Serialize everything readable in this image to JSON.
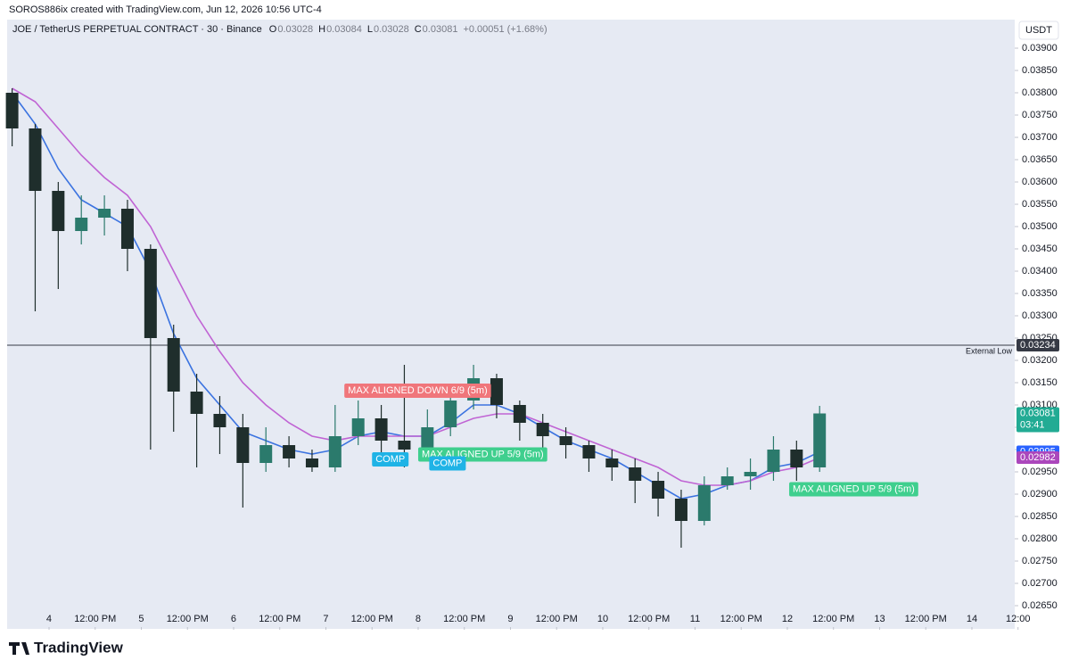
{
  "author": "SOROS886ix created with TradingView.com, Jun 12, 2026 10:56 UTC-4",
  "brand": "TradingView",
  "chart_data": {
    "type": "candlestick",
    "title": "JOE / TetherUS PERPETUAL CONTRACT · 30 · Binance",
    "header_values": [
      {
        "key": "O",
        "text": "0.03028"
      },
      {
        "key": "H",
        "text": "0.03084"
      },
      {
        "key": "L",
        "text": "0.03028"
      },
      {
        "key": "C",
        "text": "0.03081"
      }
    ],
    "change": "+0.00051 (+1.68%)",
    "currency": "USDT",
    "up_color": "#2b7a6c",
    "down_color": "#1f2e2c",
    "x": [
      3.6,
      3.85,
      4.1,
      4.35,
      4.6,
      4.85,
      5.1,
      5.35,
      5.6,
      5.85,
      6.1,
      6.35,
      6.6,
      6.85,
      7.1,
      7.35,
      7.6,
      7.85,
      8.1,
      8.35,
      8.6,
      8.85,
      9.1,
      9.35,
      9.6,
      9.85,
      10.1,
      10.35,
      10.6,
      10.85,
      11.1,
      11.35,
      11.6,
      11.85,
      12.1,
      12.35
    ],
    "open": [
      0.038,
      0.0372,
      0.0358,
      0.0349,
      0.0352,
      0.0354,
      0.0345,
      0.0325,
      0.0313,
      0.0308,
      0.0305,
      0.0297,
      0.0301,
      0.0298,
      0.0296,
      0.0303,
      0.0307,
      0.0302,
      0.03,
      0.0305,
      0.0311,
      0.0316,
      0.031,
      0.0306,
      0.0303,
      0.0301,
      0.0298,
      0.0296,
      0.0293,
      0.0289,
      0.0284,
      0.0292,
      0.0294,
      0.0295,
      0.03,
      0.0296
    ],
    "high": [
      0.0381,
      0.0373,
      0.036,
      0.0357,
      0.0357,
      0.0356,
      0.0346,
      0.0328,
      0.0317,
      0.0312,
      0.0308,
      0.0305,
      0.0303,
      0.03,
      0.031,
      0.0311,
      0.031,
      0.0319,
      0.0309,
      0.0314,
      0.0319,
      0.0317,
      0.0311,
      0.0308,
      0.0305,
      0.0302,
      0.03,
      0.0298,
      0.0295,
      0.0291,
      0.0294,
      0.0296,
      0.0298,
      0.0303,
      0.0302,
      0.03098
    ],
    "low": [
      0.0368,
      0.0331,
      0.0336,
      0.0346,
      0.0348,
      0.034,
      0.03,
      0.0304,
      0.0296,
      0.0299,
      0.0287,
      0.0295,
      0.0296,
      0.0295,
      0.0295,
      0.0301,
      0.0298,
      0.0296,
      0.0298,
      0.0303,
      0.0309,
      0.0307,
      0.0302,
      0.0298,
      0.0298,
      0.0295,
      0.0293,
      0.0288,
      0.0285,
      0.0278,
      0.0283,
      0.0291,
      0.0291,
      0.0293,
      0.0293,
      0.0295
    ],
    "close": [
      0.0372,
      0.0358,
      0.0349,
      0.0352,
      0.0354,
      0.0345,
      0.0325,
      0.0313,
      0.0308,
      0.0305,
      0.0297,
      0.0301,
      0.0298,
      0.0296,
      0.0303,
      0.0307,
      0.0302,
      0.03,
      0.0305,
      0.0311,
      0.0316,
      0.031,
      0.0306,
      0.0303,
      0.0301,
      0.0298,
      0.0296,
      0.0293,
      0.0289,
      0.0284,
      0.0292,
      0.0294,
      0.0295,
      0.03,
      0.0296,
      0.03081
    ],
    "lines": [
      {
        "color": "#3b73e0",
        "values": [
          0.038,
          0.0373,
          0.0363,
          0.0356,
          0.0353,
          0.035,
          0.034,
          0.0326,
          0.0316,
          0.031,
          0.0304,
          0.0302,
          0.03,
          0.0299,
          0.03,
          0.0303,
          0.0304,
          0.0303,
          0.0303,
          0.0306,
          0.031,
          0.031,
          0.0308,
          0.0305,
          0.0302,
          0.03,
          0.0298,
          0.0295,
          0.0292,
          0.0289,
          0.029,
          0.0292,
          0.0293,
          0.0296,
          0.0297,
          0.02995
        ]
      },
      {
        "color": "#c064d4",
        "values": [
          0.0381,
          0.0378,
          0.0372,
          0.0366,
          0.0361,
          0.0357,
          0.035,
          0.034,
          0.033,
          0.0322,
          0.0315,
          0.031,
          0.0306,
          0.0303,
          0.0302,
          0.0303,
          0.0303,
          0.0303,
          0.0303,
          0.0305,
          0.0307,
          0.0308,
          0.0308,
          0.0306,
          0.0304,
          0.0302,
          0.03,
          0.0298,
          0.0296,
          0.0293,
          0.0292,
          0.0292,
          0.0293,
          0.0295,
          0.0296,
          0.02982
        ]
      }
    ],
    "hline": {
      "value": 0.03234,
      "label": "External Low",
      "color": "#363a45"
    },
    "price_labels": [
      {
        "value": 0.03234,
        "label": "0.03234",
        "color": "#363a45"
      },
      {
        "value": 0.03081,
        "label": "0.03081",
        "countdown": "03:41",
        "color": "#22ab94"
      },
      {
        "value": 0.02995,
        "label": "0.02995",
        "color": "#2962ff"
      },
      {
        "value": 0.02982,
        "label": "0.02982",
        "color": "#ab47bc"
      }
    ],
    "annotations": [
      {
        "text": "MAX ALIGNED DOWN 6/9 (5m)",
        "x": 7.2,
        "y": 0.03132,
        "color": "#f0767b"
      },
      {
        "text": "MAX ALIGNED UP 5/9 (5m)",
        "x": 8.0,
        "y": 0.02989,
        "color": "#3fcf8e"
      },
      {
        "text": "COMP",
        "x": 7.5,
        "y": 0.02978,
        "color": "#1fb3e6"
      },
      {
        "text": "COMP",
        "x": 8.12,
        "y": 0.02969,
        "color": "#1fb3e6"
      },
      {
        "text": "MAX ALIGNED UP 5/9 (5m)",
        "x": 12.02,
        "y": 0.02911,
        "color": "#3fcf8e"
      }
    ],
    "xlim": [
      3.546,
      14.464
    ],
    "ylim": [
      0.02602,
      0.03964
    ],
    "xticks": [
      4,
      {
        "value": 4.5,
        "label": "12:00 PM"
      },
      5,
      {
        "value": 5.5,
        "label": "12:00 PM"
      },
      6,
      {
        "value": 6.5,
        "label": "12:00 PM"
      },
      7,
      {
        "value": 7.5,
        "label": "12:00 PM"
      },
      8,
      {
        "value": 8.5,
        "label": "12:00 PM"
      },
      9,
      {
        "value": 9.5,
        "label": "12:00 PM"
      },
      10,
      {
        "value": 10.5,
        "label": "12:00 PM"
      },
      11,
      {
        "value": 11.5,
        "label": "12:00 PM"
      },
      12,
      {
        "value": 12.5,
        "label": "12:00 PM"
      },
      13,
      {
        "value": 13.5,
        "label": "12:00 PM"
      },
      14,
      {
        "value": 14.5,
        "label": "12:00"
      }
    ],
    "yticks": [
      {
        "value": 0.0265,
        "label": "0.02650"
      },
      {
        "value": 0.027,
        "label": "0.02700"
      },
      {
        "value": 0.0275,
        "label": "0.02750"
      },
      {
        "value": 0.028,
        "label": "0.02800"
      },
      {
        "value": 0.0285,
        "label": "0.02850"
      },
      {
        "value": 0.029,
        "label": "0.02900"
      },
      {
        "value": 0.0295,
        "label": "0.02950"
      },
      {
        "value": 0.03,
        "label": "0.03000"
      },
      {
        "value": 0.0305,
        "label": "0.03050"
      },
      {
        "value": 0.031,
        "label": "0.03100"
      },
      {
        "value": 0.0315,
        "label": "0.03150"
      },
      {
        "value": 0.032,
        "label": "0.03200"
      },
      {
        "value": 0.0325,
        "label": "0.03250"
      },
      {
        "value": 0.033,
        "label": "0.03300"
      },
      {
        "value": 0.0335,
        "label": "0.03350"
      },
      {
        "value": 0.034,
        "label": "0.03400"
      },
      {
        "value": 0.0345,
        "label": "0.03450"
      },
      {
        "value": 0.035,
        "label": "0.03500"
      },
      {
        "value": 0.0355,
        "label": "0.03550"
      },
      {
        "value": 0.036,
        "label": "0.03600"
      },
      {
        "value": 0.0365,
        "label": "0.03650"
      },
      {
        "value": 0.037,
        "label": "0.03700"
      },
      {
        "value": 0.0375,
        "label": "0.03750"
      },
      {
        "value": 0.038,
        "label": "0.03800"
      },
      {
        "value": 0.0385,
        "label": "0.03850"
      },
      {
        "value": 0.039,
        "label": "0.03900"
      }
    ]
  }
}
